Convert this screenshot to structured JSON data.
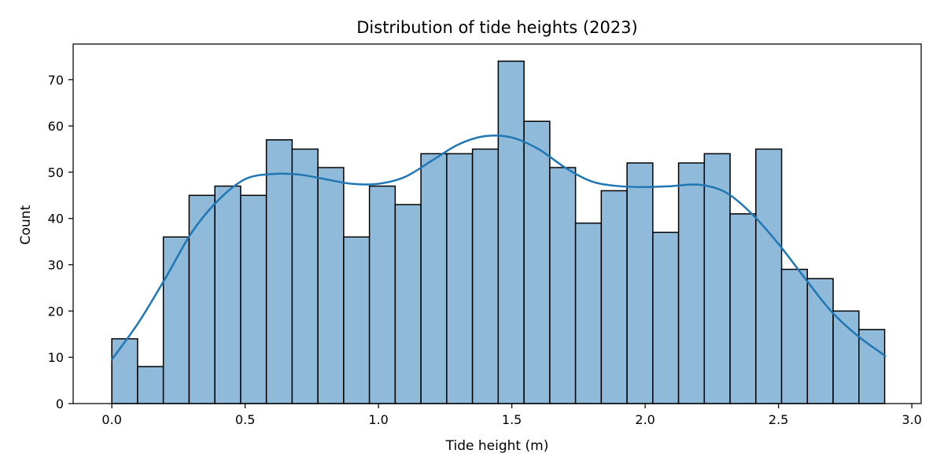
{
  "chart_data": {
    "type": "bar",
    "title": "Distribution of tide heights (2023)",
    "xlabel": "Tide height (m)",
    "ylabel": "Count",
    "xlim": [
      -0.145,
      3.035
    ],
    "ylim": [
      0,
      77.7
    ],
    "bin_width": 0.0966,
    "bins": [
      {
        "start": 0.0,
        "count": 14
      },
      {
        "start": 0.0966,
        "count": 8
      },
      {
        "start": 0.1932,
        "count": 36
      },
      {
        "start": 0.2898,
        "count": 45
      },
      {
        "start": 0.3864,
        "count": 47
      },
      {
        "start": 0.483,
        "count": 45
      },
      {
        "start": 0.5796,
        "count": 57
      },
      {
        "start": 0.6762,
        "count": 55
      },
      {
        "start": 0.7728,
        "count": 51
      },
      {
        "start": 0.8694,
        "count": 36
      },
      {
        "start": 0.966,
        "count": 47
      },
      {
        "start": 1.0626,
        "count": 43
      },
      {
        "start": 1.1592,
        "count": 54
      },
      {
        "start": 1.2558,
        "count": 54
      },
      {
        "start": 1.3524,
        "count": 55
      },
      {
        "start": 1.449,
        "count": 74
      },
      {
        "start": 1.5456,
        "count": 61
      },
      {
        "start": 1.6422,
        "count": 51
      },
      {
        "start": 1.7388,
        "count": 39
      },
      {
        "start": 1.8354,
        "count": 46
      },
      {
        "start": 1.932,
        "count": 52
      },
      {
        "start": 2.0286,
        "count": 37
      },
      {
        "start": 2.1252,
        "count": 52
      },
      {
        "start": 2.2218,
        "count": 54
      },
      {
        "start": 2.3184,
        "count": 41
      },
      {
        "start": 2.415,
        "count": 55
      },
      {
        "start": 2.5116,
        "count": 29
      },
      {
        "start": 2.6082,
        "count": 27
      },
      {
        "start": 2.7048,
        "count": 20
      },
      {
        "start": 2.8014,
        "count": 16
      }
    ],
    "kde": {
      "x": [
        0.0,
        0.1,
        0.2,
        0.3,
        0.4,
        0.5,
        0.6,
        0.7,
        0.8,
        0.9,
        1.0,
        1.1,
        1.2,
        1.3,
        1.4,
        1.5,
        1.6,
        1.7,
        1.8,
        1.9,
        2.0,
        2.1,
        2.2,
        2.3,
        2.4,
        2.5,
        2.6,
        2.7,
        2.8,
        2.9
      ],
      "y": [
        9.5,
        17.5,
        27,
        37,
        44,
        48.5,
        49.6,
        49.5,
        48.5,
        47.5,
        47.5,
        49,
        52.5,
        56,
        57.8,
        57.5,
        55,
        51,
        48,
        47,
        46.8,
        47,
        47.3,
        45.7,
        41,
        34.5,
        27,
        19.8,
        14.5,
        10.3
      ]
    },
    "x_ticks": [
      "0.0",
      "0.5",
      "1.0",
      "1.5",
      "2.0",
      "2.5",
      "3.0"
    ],
    "y_ticks": [
      "0",
      "10",
      "20",
      "30",
      "40",
      "50",
      "60",
      "70"
    ],
    "colors": {
      "bar_fill": "#8fbad9",
      "bar_edge": "#000000",
      "kde_line": "#1f77b4"
    },
    "grid": false,
    "legend": "none"
  }
}
